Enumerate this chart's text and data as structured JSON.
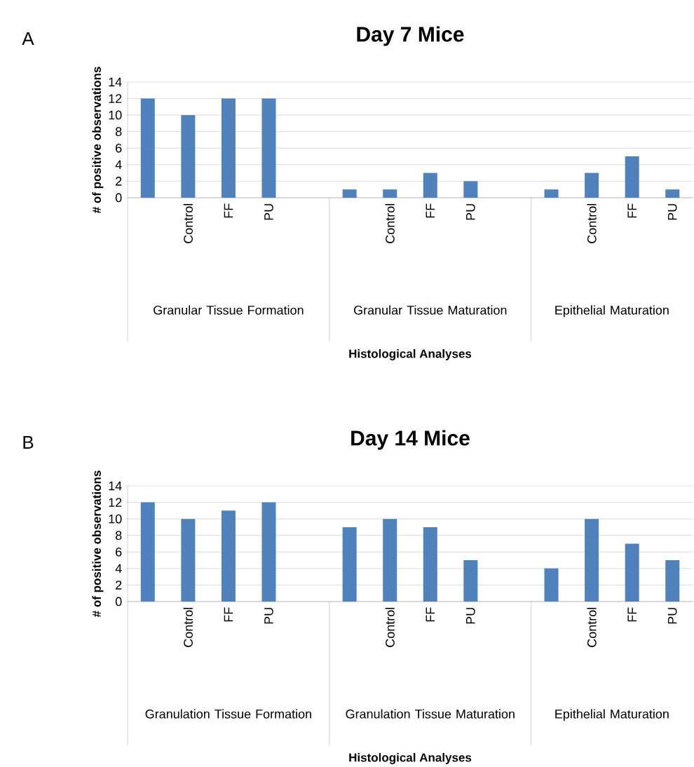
{
  "chart_data": [
    {
      "type": "bar",
      "title": "Day 7 Mice",
      "xlabel": "Histological Analyses",
      "ylabel": "# of positive observations",
      "categories": [
        null,
        "Control",
        "FF",
        "PU",
        null,
        null,
        "Control",
        "FF",
        "PU",
        null,
        null,
        "Control",
        "FF",
        "PU"
      ],
      "values": [
        12,
        10,
        12,
        12,
        null,
        1,
        1,
        3,
        2,
        null,
        1,
        3,
        5,
        1
      ],
      "color": "#4f81bd",
      "ylim": [
        0,
        14
      ],
      "yticks": [
        0,
        2,
        4,
        6,
        8,
        10,
        12,
        14
      ],
      "grid": "y",
      "annotations": [
        "A",
        "Granular Tissue Formation",
        "Granular Tissue Maturation",
        "Epithelial Maturation"
      ]
    },
    {
      "type": "bar",
      "title": "Day 14 Mice",
      "xlabel": "Histological Analyses",
      "ylabel": "# of positive observations",
      "categories": [
        null,
        "Control",
        "FF",
        "PU",
        null,
        null,
        "Control",
        "FF",
        "PU",
        null,
        null,
        "Control",
        "FF",
        "PU"
      ],
      "values": [
        12,
        10,
        11,
        12,
        null,
        9,
        10,
        9,
        5,
        null,
        4,
        10,
        7,
        5
      ],
      "color": "#4f81bd",
      "ylim": [
        0,
        14
      ],
      "yticks": [
        0,
        2,
        4,
        6,
        8,
        10,
        12,
        14
      ],
      "grid": "y",
      "annotations": [
        "B",
        "Granulation Tissue Formation",
        "Granulation Tissue Maturation",
        "Epithelial Maturation"
      ]
    }
  ]
}
